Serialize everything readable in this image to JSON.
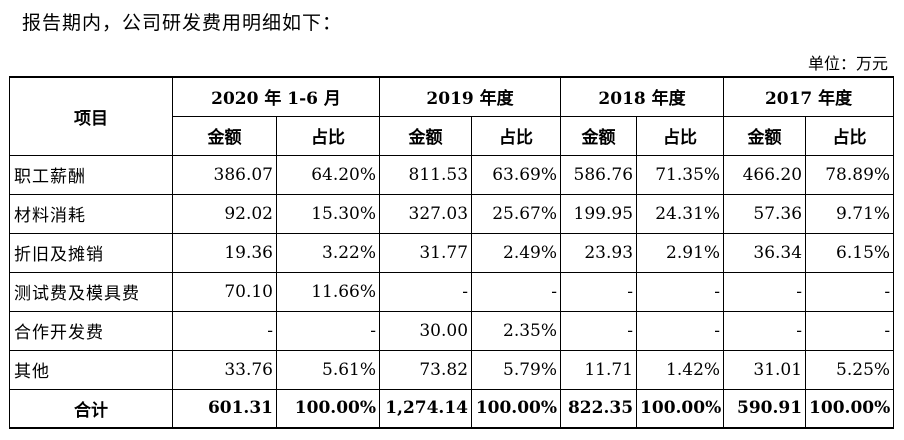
{
  "intro": "报告期内，公司研发费用明细如下：",
  "unit": "单位：万元",
  "table": {
    "item_header": "项目",
    "periods": [
      "2020 年 1-6 月",
      "2019 年度",
      "2018 年度",
      "2017 年度"
    ],
    "sub_headers": {
      "amount": "金额",
      "ratio": "占比"
    },
    "rows": [
      {
        "label": "职工薪酬",
        "cells": [
          "386.07",
          "64.20%",
          "811.53",
          "63.69%",
          "586.76",
          "71.35%",
          "466.20",
          "78.89%"
        ]
      },
      {
        "label": "材料消耗",
        "cells": [
          "92.02",
          "15.30%",
          "327.03",
          "25.67%",
          "199.95",
          "24.31%",
          "57.36",
          "9.71%"
        ]
      },
      {
        "label": "折旧及摊销",
        "cells": [
          "19.36",
          "3.22%",
          "31.77",
          "2.49%",
          "23.93",
          "2.91%",
          "36.34",
          "6.15%"
        ]
      },
      {
        "label": "测试费及模具费",
        "cells": [
          "70.10",
          "11.66%",
          "-",
          "-",
          "-",
          "-",
          "-",
          "-"
        ]
      },
      {
        "label": "合作开发费",
        "cells": [
          "-",
          "-",
          "30.00",
          "2.35%",
          "-",
          "-",
          "-",
          "-"
        ]
      },
      {
        "label": "其他",
        "cells": [
          "33.76",
          "5.61%",
          "73.82",
          "5.79%",
          "11.71",
          "1.42%",
          "31.01",
          "5.25%"
        ]
      }
    ],
    "total": {
      "label": "合计",
      "cells": [
        "601.31",
        "100.00%",
        "1,274.14",
        "100.00%",
        "822.35",
        "100.00%",
        "590.91",
        "100.00%"
      ]
    }
  }
}
